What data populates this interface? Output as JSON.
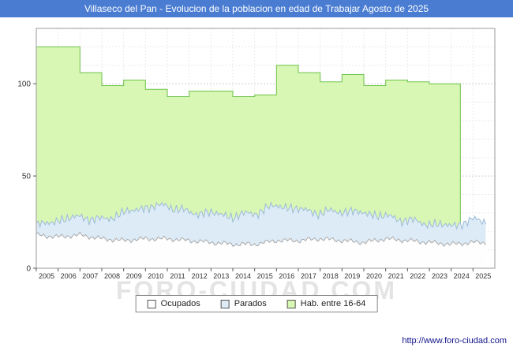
{
  "title": "Villaseco del Pan - Evolucion de la poblacion en edad de Trabajar Agosto de 2025",
  "watermark": "FORO-CIUDAD.COM",
  "footer_url": "http://www.foro-ciudad.com",
  "colors": {
    "titlebar_bg": "#4a7dd2",
    "titlebar_text": "#ffffff",
    "frame": "#999999",
    "grid_major": "#cfcfcf",
    "grid_minor": "#eaeaea",
    "axis_text": "#333333",
    "watermark": "#e4e4e4"
  },
  "chart_data": {
    "type": "area",
    "title": "Villaseco del Pan - Evolucion de la poblacion en edad de Trabajar Agosto de 2025",
    "xlabel": "",
    "ylabel": "",
    "xlim": [
      2005,
      2026.0
    ],
    "ylim": [
      0,
      130
    ],
    "grid": true,
    "x_ticks": [
      2005,
      2006,
      2007,
      2008,
      2009,
      2010,
      2011,
      2012,
      2013,
      2014,
      2015,
      2016,
      2017,
      2018,
      2019,
      2020,
      2021,
      2022,
      2023,
      2024,
      2025
    ],
    "y_ticks": [
      0,
      50,
      100
    ],
    "legend": [
      "Ocupados",
      "Parados",
      "Hab. entre 16-64"
    ],
    "legend_position": "bottom",
    "legend_colors": [
      "#ffffff",
      "#ddebf7",
      "#d9f7b4"
    ],
    "series": [
      {
        "name": "Hab. entre 16-64",
        "type": "step",
        "color_fill": "#d9f7b4",
        "color_line": "#6cc24a",
        "end": 2024.42,
        "steps": [
          [
            2005,
            120
          ],
          [
            2006,
            120
          ],
          [
            2007,
            106
          ],
          [
            2008,
            99
          ],
          [
            2009,
            102
          ],
          [
            2010,
            97
          ],
          [
            2011,
            93
          ],
          [
            2012,
            96
          ],
          [
            2013,
            96
          ],
          [
            2014,
            93
          ],
          [
            2015,
            94
          ],
          [
            2016,
            110
          ],
          [
            2017,
            106
          ],
          [
            2018,
            101
          ],
          [
            2019,
            105
          ],
          [
            2020,
            99
          ],
          [
            2021,
            102
          ],
          [
            2022,
            101
          ],
          [
            2023,
            100
          ],
          [
            2024,
            100
          ]
        ]
      },
      {
        "name": "Parados",
        "type": "area-stacked-on-ocupados",
        "color_fill": "#ddebf7",
        "color_line": "#9dbbd8",
        "end": 2025.62,
        "jitter": 2.5,
        "yearly": [
          5,
          9,
          10,
          10,
          15,
          17,
          18,
          15,
          16,
          15,
          17,
          19,
          17,
          14,
          16,
          16,
          12,
          11,
          10,
          10,
          12
        ]
      },
      {
        "name": "Ocupados",
        "type": "area",
        "color_fill": "#fefefe",
        "color_line": "#aaaaaa",
        "end": 2025.62,
        "jitter": 1.5,
        "yearly": [
          18,
          17,
          18,
          16,
          15,
          16,
          16,
          15,
          14,
          13,
          13,
          15,
          15,
          16,
          15,
          14,
          16,
          15,
          14,
          13,
          14
        ]
      }
    ]
  }
}
